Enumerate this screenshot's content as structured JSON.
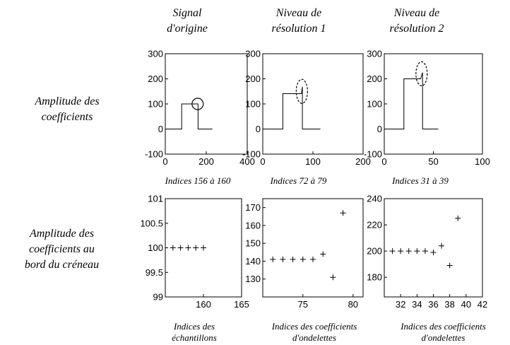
{
  "headers": {
    "col1": [
      "Signal",
      "d'origine"
    ],
    "col2": [
      "Niveau de",
      "résolution 1"
    ],
    "col3": [
      "Niveau de",
      "résolution 2"
    ]
  },
  "row_labels": {
    "row1": [
      "Amplitude des",
      "coefficients"
    ],
    "row2": [
      "Amplitude des",
      "coefficients au",
      "bord du créneau"
    ]
  },
  "captions_top": [
    "Indices 156 à 160",
    "Indices 72 à 79",
    "Indices 31 à 39"
  ],
  "captions_bottom": [
    [
      "Indices des",
      "échantillons"
    ],
    [
      "Indices des coefficients",
      "d'ondelettes"
    ],
    [
      "Indices des coefficients",
      "d'ondelettes"
    ]
  ],
  "chart_data": [
    {
      "type": "line",
      "xlim": [
        0,
        400
      ],
      "ylim": [
        -100,
        300
      ],
      "xticks": [
        "0",
        "200",
        "400"
      ],
      "xtick_values": [
        0,
        200,
        400
      ],
      "yticks": [
        "300",
        "200",
        "100",
        "0",
        "-100"
      ],
      "ytick_values": [
        300,
        200,
        100,
        0,
        -100
      ],
      "series": [
        {
          "x": [
            0,
            80,
            80,
            160,
            160,
            230
          ],
          "y": [
            0,
            0,
            100,
            100,
            0,
            0
          ]
        }
      ],
      "annotation": {
        "shape": "circle",
        "style": "solid",
        "cx": 158,
        "cy": 100
      }
    },
    {
      "type": "line",
      "xlim": [
        0,
        200
      ],
      "ylim": [
        -100,
        300
      ],
      "xticks": [
        "0",
        "100",
        "200"
      ],
      "xtick_values": [
        0,
        100,
        200
      ],
      "yticks": [
        "300",
        "200",
        "100",
        "0",
        "-100"
      ],
      "ytick_values": [
        300,
        200,
        100,
        0,
        -100
      ],
      "series": [
        {
          "x": [
            0,
            40,
            40,
            77,
            79,
            79,
            115
          ],
          "y": [
            0,
            0,
            141,
            141,
            168,
            0,
            0
          ]
        }
      ],
      "annotation": {
        "shape": "ellipse",
        "style": "dashed",
        "cx": 78,
        "cy": 150
      }
    },
    {
      "type": "line",
      "xlim": [
        0,
        100
      ],
      "ylim": [
        -100,
        300
      ],
      "xticks": [
        "0",
        "50",
        "100"
      ],
      "xtick_values": [
        0,
        50,
        100
      ],
      "yticks": [
        "300",
        "200",
        "100",
        "0",
        "-100"
      ],
      "ytick_values": [
        300,
        200,
        100,
        0,
        -100
      ],
      "series": [
        {
          "x": [
            0,
            20,
            20,
            37,
            39,
            39,
            55
          ],
          "y": [
            0,
            0,
            200,
            200,
            225,
            0,
            0
          ]
        }
      ],
      "annotation": {
        "shape": "ellipse",
        "style": "dashed",
        "cx": 38,
        "cy": 220
      }
    },
    {
      "type": "scatter",
      "xlim": [
        155,
        165
      ],
      "ylim": [
        99,
        101
      ],
      "xticks": [
        "160",
        "165"
      ],
      "xtick_values": [
        160,
        165
      ],
      "yticks": [
        "101",
        "100.5",
        "100",
        "99.5",
        "99"
      ],
      "ytick_values": [
        101,
        100.5,
        100,
        99.5,
        99
      ],
      "series": [
        {
          "x": [
            156,
            157,
            158,
            159,
            160
          ],
          "y": [
            100,
            100,
            100,
            100,
            100
          ]
        }
      ]
    },
    {
      "type": "scatter",
      "xlim": [
        71,
        81
      ],
      "ylim": [
        120,
        175
      ],
      "xticks": [
        "75",
        "80"
      ],
      "xtick_values": [
        75,
        80
      ],
      "yticks": [
        "170",
        "160",
        "150",
        "140",
        "130"
      ],
      "ytick_values": [
        170,
        160,
        150,
        140,
        130
      ],
      "series": [
        {
          "x": [
            72,
            73,
            74,
            75,
            76,
            77,
            78,
            79
          ],
          "y": [
            141,
            141,
            141,
            141,
            141,
            144,
            131,
            167
          ]
        }
      ]
    },
    {
      "type": "scatter",
      "xlim": [
        30,
        42
      ],
      "ylim": [
        165,
        240
      ],
      "xticks": [
        "32",
        "34",
        "36",
        "38",
        "40",
        "42"
      ],
      "xtick_values": [
        32,
        34,
        36,
        38,
        40,
        42
      ],
      "yticks": [
        "240",
        "220",
        "200",
        "180"
      ],
      "ytick_values": [
        240,
        220,
        200,
        180
      ],
      "series": [
        {
          "x": [
            31,
            32,
            33,
            34,
            35,
            36,
            37,
            38,
            39
          ],
          "y": [
            200,
            200,
            200,
            200,
            200,
            199,
            204,
            189,
            225
          ]
        }
      ]
    }
  ]
}
